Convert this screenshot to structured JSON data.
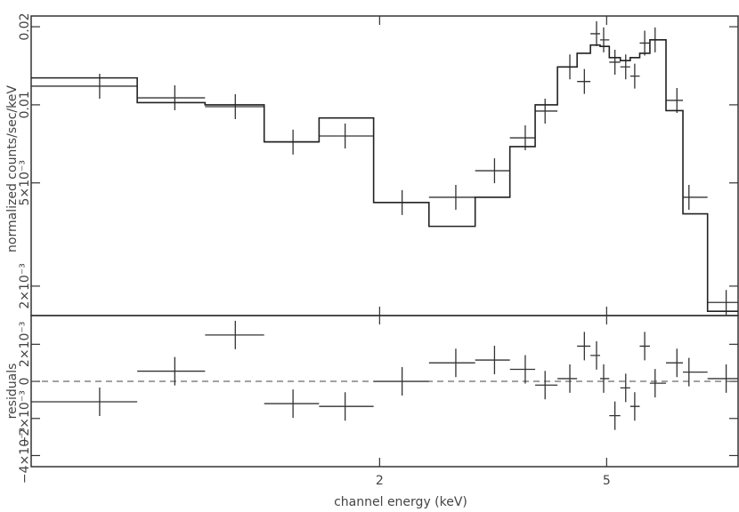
{
  "chart_data": [
    {
      "type": "scatter",
      "log_x": true,
      "log_y": true,
      "ylabel": "normalized counts/sec/keV",
      "x": [
        0.646,
        0.875,
        1.117,
        1.41,
        1.74,
        2.19,
        2.72,
        3.18,
        3.6,
        3.9,
        4.31,
        4.57,
        4.8,
        4.94,
        5.17,
        5.4,
        5.6,
        5.83,
        6.08,
        6.64,
        6.97,
        8.1
      ],
      "values": [
        0.0118,
        0.01064,
        0.00984,
        0.00718,
        0.00758,
        0.0042,
        0.0044,
        0.00557,
        0.00746,
        0.00946,
        0.014,
        0.0123,
        0.0188,
        0.0178,
        0.0146,
        0.014,
        0.0129,
        0.0173,
        0.0178,
        0.0104,
        0.0044,
        0.00173
      ],
      "model": [
        0.0127,
        0.0102,
        0.01,
        0.0072,
        0.0089,
        0.0042,
        0.0034,
        0.0044,
        0.0069,
        0.01,
        0.014,
        0.0158,
        0.017,
        0.0168,
        0.0152,
        0.0148,
        0.0152,
        0.0158,
        0.0178,
        0.0095,
        0.0038,
        0.0016
      ],
      "xlim": [
        0.49,
        8.5
      ],
      "ylim": [
        0.00154,
        0.022
      ],
      "yticks": [
        0.02,
        0.01,
        {
          "value": 0.005,
          "label": "5×10⁻³"
        },
        {
          "value": 0.002,
          "label": "2×10⁻³"
        }
      ]
    },
    {
      "type": "residuals",
      "log_x": true,
      "ylabel": "residuals",
      "xlabel": "channel energy (keV)",
      "x": [
        0.646,
        0.875,
        1.117,
        1.41,
        1.74,
        2.19,
        2.72,
        3.18,
        3.6,
        3.9,
        4.31,
        4.57,
        4.8,
        4.94,
        5.17,
        5.4,
        5.6,
        5.83,
        6.08,
        6.64,
        6.97,
        8.1
      ],
      "values": [
        -0.0011,
        0.00055,
        0.0025,
        -0.0012,
        -0.00135,
        0,
        0.001,
        0.00115,
        0.00065,
        -0.0002,
        0.00015,
        0.0019,
        0.0014,
        0.00015,
        -0.00185,
        -0.00035,
        -0.00135,
        0.0019,
        -0.0001,
        0.001,
        0.0005,
        0.00015
      ],
      "xlim": [
        0.49,
        8.5
      ],
      "ylim": [
        -0.0046,
        0.00355
      ],
      "xticks": [
        2,
        5
      ],
      "yticks": [
        {
          "value": -0.004,
          "label": "−4×10⁻³"
        },
        {
          "value": -0.002,
          "label": "−2×10⁻³"
        },
        0,
        {
          "value": 0.002,
          "label": "2×10⁻³"
        }
      ]
    }
  ]
}
